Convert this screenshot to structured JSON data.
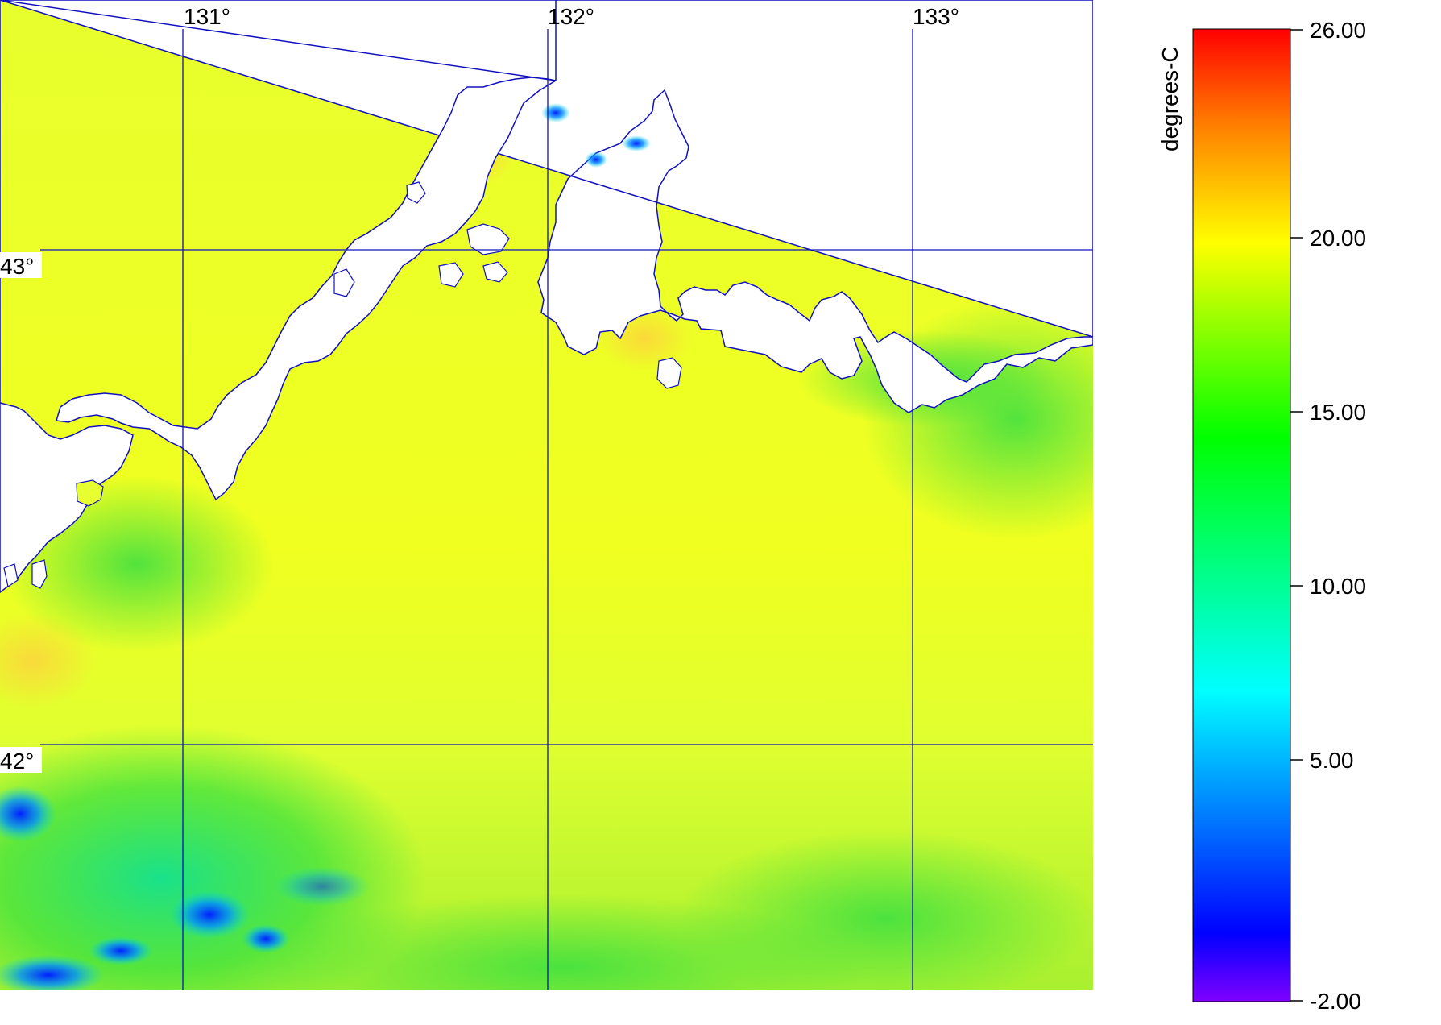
{
  "map": {
    "lon_labels": [
      "131°",
      "132°",
      "133°"
    ],
    "lat_labels": [
      "43°",
      "42°"
    ],
    "grid_color": "#1010c0",
    "coast_color": "#1010c0",
    "land_color": "#ffffff"
  },
  "colorbar": {
    "unit_label": "degrees-C",
    "tick_labels": [
      "26.00",
      "20.00",
      "15.00",
      "10.00",
      "5.00",
      "-2.00"
    ],
    "range": [
      -2,
      26
    ],
    "gradient": [
      "#8000ff",
      "#0000ff",
      "#00ffff",
      "#00ff00",
      "#ffff00",
      "#ff8000",
      "#ff0000"
    ]
  },
  "field": {
    "dominant_color": "#e6ff30",
    "cool_color": "#30e020",
    "cold_color": "#0040ff"
  }
}
